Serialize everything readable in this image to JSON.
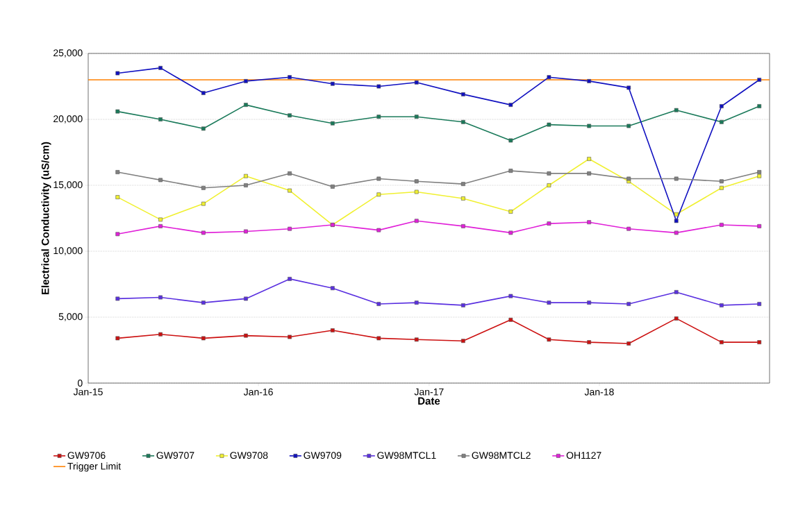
{
  "chart_data": {
    "type": "line",
    "xlabel": "Date",
    "ylabel": "Electrical Conductivity  (uS/cm)",
    "x": [
      "2015-03-05",
      "2015-06-05",
      "2015-09-05",
      "2015-12-05",
      "2016-03-08",
      "2016-06-08",
      "2016-09-15",
      "2016-12-05",
      "2017-03-15",
      "2017-06-25",
      "2017-09-15",
      "2017-12-10",
      "2018-03-05",
      "2018-06-15",
      "2018-09-20",
      "2018-12-10"
    ],
    "series": [
      {
        "name": "GW9706",
        "color": "#cc1010",
        "values": [
          3400,
          3700,
          3400,
          3600,
          3500,
          4000,
          3400,
          3300,
          3200,
          4800,
          3300,
          3100,
          3000,
          4900,
          3100,
          3100
        ]
      },
      {
        "name": "GW9707",
        "color": "#1a7a5a",
        "values": [
          20600,
          20000,
          19300,
          21100,
          20300,
          19700,
          20200,
          20200,
          19800,
          18400,
          19600,
          19500,
          19500,
          20700,
          19800,
          21000
        ]
      },
      {
        "name": "GW9708",
        "color": "#f0f030",
        "values": [
          14100,
          12400,
          13600,
          15700,
          14600,
          12000,
          14300,
          14500,
          14000,
          13000,
          15000,
          17000,
          15300,
          12800,
          14800,
          15700
        ]
      },
      {
        "name": "GW9709",
        "color": "#1010c0",
        "values": [
          23500,
          23900,
          22000,
          22900,
          23200,
          22700,
          22500,
          22800,
          21900,
          21100,
          23200,
          22900,
          22400,
          12300,
          21000,
          23000
        ]
      },
      {
        "name": "GW98MTCL1",
        "color": "#5a30e0",
        "values": [
          6400,
          6500,
          6100,
          6400,
          7900,
          7200,
          6000,
          6100,
          5900,
          6600,
          6100,
          6100,
          6000,
          6900,
          5900,
          6000
        ]
      },
      {
        "name": "GW98MTCL2",
        "color": "#808080",
        "values": [
          16000,
          15400,
          14800,
          15000,
          15900,
          14900,
          15500,
          15300,
          15100,
          16100,
          15900,
          15900,
          15500,
          15500,
          15300,
          16000
        ]
      },
      {
        "name": "OH1127",
        "color": "#e020d8",
        "values": [
          11300,
          11900,
          11400,
          11500,
          11700,
          12000,
          11600,
          12300,
          11900,
          11400,
          12100,
          12200,
          11700,
          11400,
          12000,
          11900
        ]
      }
    ],
    "ref_lines": [
      {
        "axis": "y",
        "value": 23000,
        "label": "Trigger Limit",
        "color": "#ff8000"
      }
    ],
    "xlim": [
      "2015-01-01",
      "2019-01-01"
    ],
    "xticks": [
      {
        "value": "2015-01-01",
        "label": "Jan-15"
      },
      {
        "value": "2016-01-01",
        "label": "Jan-16"
      },
      {
        "value": "2017-01-01",
        "label": "Jan-17"
      },
      {
        "value": "2018-01-01",
        "label": "Jan-18"
      }
    ],
    "ylim": [
      0,
      25000
    ],
    "yticks": [
      {
        "value": 0,
        "label": "0"
      },
      {
        "value": 5000,
        "label": "5,000"
      },
      {
        "value": 10000,
        "label": "10,000"
      },
      {
        "value": 15000,
        "label": "15,000"
      },
      {
        "value": 20000,
        "label": "20,000"
      },
      {
        "value": 25000,
        "label": "25,000"
      }
    ],
    "grid": "y",
    "legend": "bottom",
    "marker": "square"
  }
}
